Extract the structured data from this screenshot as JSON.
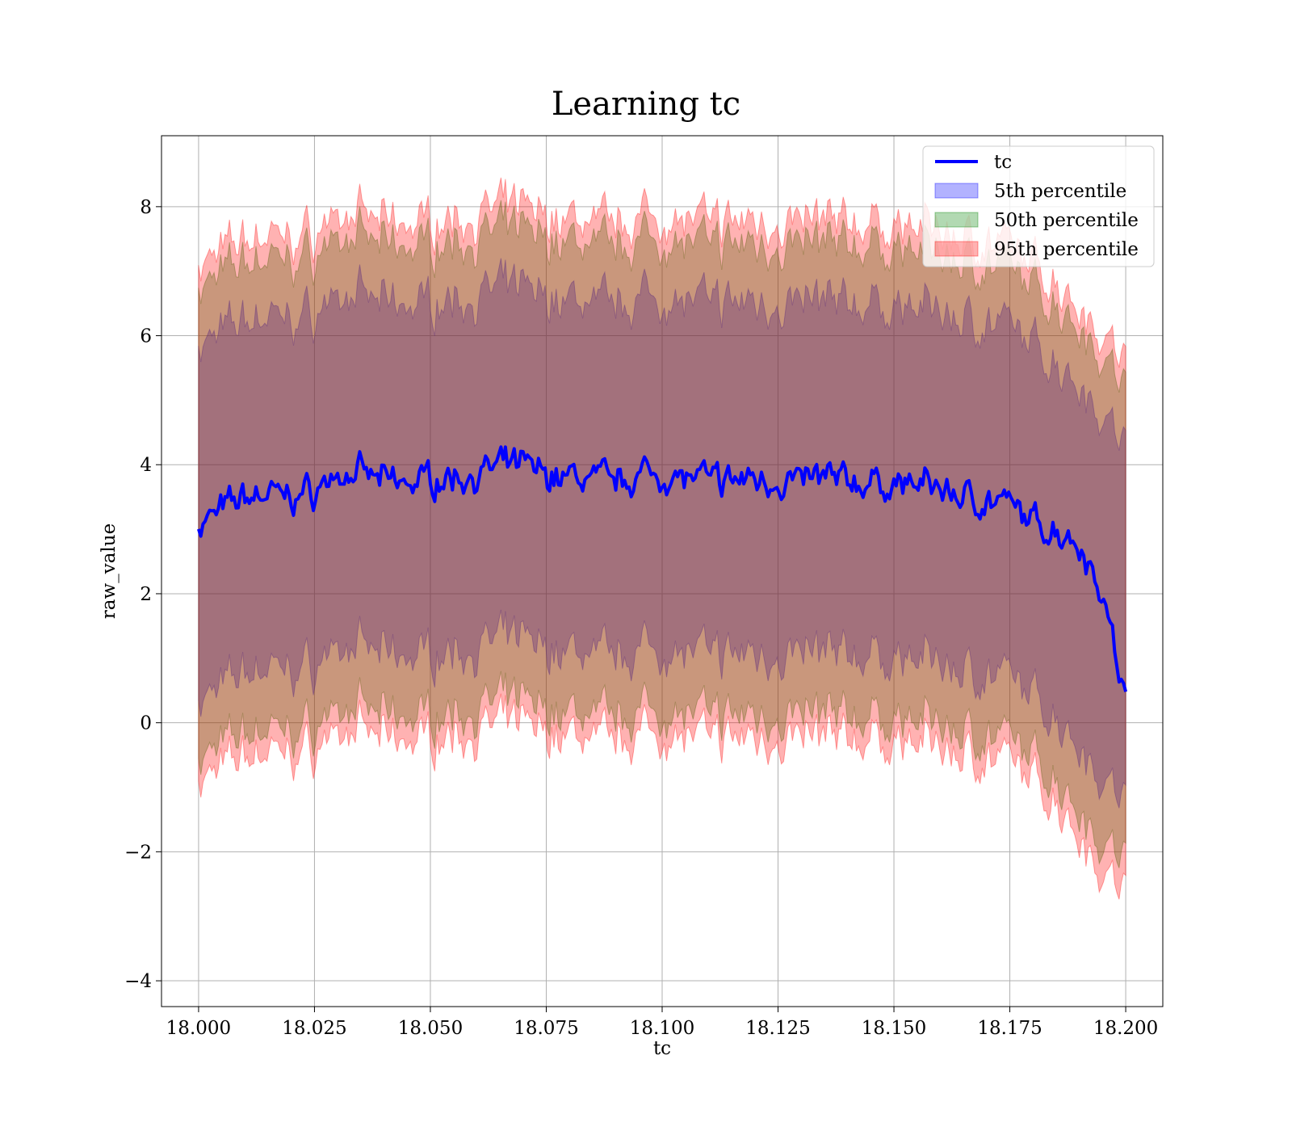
{
  "chart_data": {
    "type": "area",
    "title": "Learning tc",
    "xlabel": "tc",
    "ylabel": "raw_value",
    "xlim": [
      17.992,
      18.208
    ],
    "ylim": [
      -4.4,
      9.1
    ],
    "x_ticks": [
      18.0,
      18.025,
      18.05,
      18.075,
      18.1,
      18.125,
      18.15,
      18.175,
      18.2
    ],
    "x_tick_labels": [
      "18.000",
      "18.025",
      "18.050",
      "18.075",
      "18.100",
      "18.125",
      "18.150",
      "18.175",
      "18.200"
    ],
    "y_ticks": [
      -4,
      -2,
      0,
      2,
      4,
      6,
      8
    ],
    "y_tick_labels": [
      "−4",
      "−2",
      "0",
      "2",
      "4",
      "6",
      "8"
    ],
    "grid": true,
    "legend_position": "top-right",
    "series": [
      {
        "name": "tc",
        "kind": "line",
        "color": "#0000ff",
        "x": [
          18.0,
          18.005,
          18.01,
          18.015,
          18.02,
          18.025,
          18.03,
          18.035,
          18.04,
          18.045,
          18.05,
          18.055,
          18.06,
          18.065,
          18.07,
          18.075,
          18.08,
          18.085,
          18.09,
          18.095,
          18.1,
          18.105,
          18.11,
          18.115,
          18.12,
          18.125,
          18.13,
          18.135,
          18.14,
          18.145,
          18.15,
          18.155,
          18.16,
          18.165,
          18.17,
          18.175,
          18.18,
          18.185,
          18.19,
          18.195,
          18.2
        ],
        "y": [
          3.05,
          3.3,
          3.5,
          3.55,
          3.5,
          3.6,
          3.85,
          3.85,
          3.75,
          3.7,
          3.8,
          3.8,
          3.85,
          3.95,
          4.0,
          3.85,
          3.8,
          3.8,
          3.75,
          3.85,
          3.85,
          3.8,
          3.75,
          3.75,
          3.8,
          3.75,
          3.75,
          3.8,
          3.75,
          3.7,
          3.7,
          3.7,
          3.65,
          3.5,
          3.45,
          3.35,
          3.1,
          3.0,
          2.8,
          2.05,
          0.3
        ]
      },
      {
        "name": "5th percentile",
        "kind": "band",
        "color": "#0000ff",
        "opacity": 0.3,
        "x": [
          18.0,
          18.005,
          18.01,
          18.015,
          18.02,
          18.025,
          18.03,
          18.035,
          18.04,
          18.045,
          18.05,
          18.055,
          18.06,
          18.065,
          18.07,
          18.075,
          18.08,
          18.085,
          18.09,
          18.095,
          18.1,
          18.105,
          18.11,
          18.115,
          18.12,
          18.125,
          18.13,
          18.135,
          18.14,
          18.145,
          18.15,
          18.155,
          18.16,
          18.165,
          18.17,
          18.175,
          18.18,
          18.185,
          18.19,
          18.195,
          18.2
        ],
        "lower": [
          0.3,
          0.55,
          0.8,
          0.85,
          0.8,
          0.9,
          1.15,
          1.15,
          1.05,
          1.0,
          1.1,
          1.1,
          1.15,
          1.25,
          1.3,
          1.15,
          1.1,
          1.1,
          1.05,
          1.15,
          1.15,
          1.1,
          1.05,
          1.05,
          1.1,
          1.05,
          1.05,
          1.1,
          1.05,
          1.0,
          1.0,
          1.0,
          0.95,
          0.8,
          0.75,
          0.65,
          0.4,
          0.1,
          -0.3,
          -0.85,
          -1.2
        ],
        "upper": [
          5.8,
          6.05,
          6.25,
          6.3,
          6.25,
          6.35,
          6.6,
          6.6,
          6.5,
          6.45,
          6.55,
          6.55,
          6.6,
          6.7,
          6.75,
          6.6,
          6.55,
          6.55,
          6.5,
          6.6,
          6.6,
          6.55,
          6.5,
          6.5,
          6.55,
          6.5,
          6.5,
          6.55,
          6.5,
          6.45,
          6.45,
          6.45,
          6.4,
          6.25,
          6.2,
          6.1,
          5.85,
          5.6,
          5.3,
          4.8,
          4.3
        ]
      },
      {
        "name": "50th percentile",
        "kind": "band",
        "color": "#008000",
        "opacity": 0.3,
        "x": [
          18.0,
          18.005,
          18.01,
          18.015,
          18.02,
          18.025,
          18.03,
          18.035,
          18.04,
          18.045,
          18.05,
          18.055,
          18.06,
          18.065,
          18.07,
          18.075,
          18.08,
          18.085,
          18.09,
          18.095,
          18.1,
          18.105,
          18.11,
          18.115,
          18.12,
          18.125,
          18.13,
          18.135,
          18.14,
          18.145,
          18.15,
          18.155,
          18.16,
          18.165,
          18.17,
          18.175,
          18.18,
          18.185,
          18.19,
          18.195,
          18.2
        ],
        "lower": [
          -0.6,
          -0.35,
          -0.15,
          -0.1,
          -0.15,
          -0.05,
          0.2,
          0.2,
          0.1,
          0.05,
          0.15,
          0.15,
          0.2,
          0.3,
          0.35,
          0.2,
          0.15,
          0.15,
          0.1,
          0.2,
          0.2,
          0.15,
          0.1,
          0.1,
          0.15,
          0.1,
          0.1,
          0.15,
          0.1,
          0.05,
          0.05,
          0.05,
          0.0,
          -0.15,
          -0.2,
          -0.3,
          -0.55,
          -0.85,
          -1.3,
          -1.85,
          -2.1
        ],
        "upper": [
          6.7,
          6.95,
          7.15,
          7.2,
          7.15,
          7.25,
          7.5,
          7.5,
          7.4,
          7.35,
          7.45,
          7.45,
          7.5,
          7.6,
          7.65,
          7.5,
          7.45,
          7.45,
          7.4,
          7.5,
          7.5,
          7.45,
          7.4,
          7.4,
          7.45,
          7.4,
          7.4,
          7.45,
          7.4,
          7.35,
          7.35,
          7.35,
          7.3,
          7.15,
          7.1,
          7.0,
          6.75,
          6.5,
          6.2,
          5.7,
          5.2
        ]
      },
      {
        "name": "95th percentile",
        "kind": "band",
        "color": "#ff0000",
        "opacity": 0.3,
        "x": [
          18.0,
          18.005,
          18.01,
          18.015,
          18.02,
          18.025,
          18.03,
          18.035,
          18.04,
          18.045,
          18.05,
          18.055,
          18.06,
          18.065,
          18.07,
          18.075,
          18.08,
          18.085,
          18.09,
          18.095,
          18.1,
          18.105,
          18.11,
          18.115,
          18.12,
          18.125,
          18.13,
          18.135,
          18.14,
          18.145,
          18.15,
          18.155,
          18.16,
          18.165,
          18.17,
          18.175,
          18.18,
          18.185,
          18.19,
          18.195,
          18.2
        ],
        "lower": [
          -0.95,
          -0.7,
          -0.5,
          -0.45,
          -0.5,
          -0.4,
          -0.15,
          -0.15,
          -0.25,
          -0.3,
          -0.2,
          -0.2,
          -0.15,
          -0.05,
          0.0,
          -0.15,
          -0.2,
          -0.2,
          -0.25,
          -0.15,
          -0.15,
          -0.2,
          -0.25,
          -0.25,
          -0.2,
          -0.25,
          -0.25,
          -0.2,
          -0.25,
          -0.3,
          -0.3,
          -0.3,
          -0.35,
          -0.5,
          -0.55,
          -0.65,
          -0.9,
          -1.2,
          -1.7,
          -2.3,
          -2.6
        ],
        "upper": [
          7.05,
          7.3,
          7.5,
          7.55,
          7.5,
          7.6,
          7.85,
          7.85,
          7.75,
          7.7,
          7.8,
          7.8,
          7.85,
          7.95,
          8.0,
          7.85,
          7.8,
          7.8,
          7.75,
          7.85,
          7.85,
          7.8,
          7.75,
          7.75,
          7.8,
          7.75,
          7.75,
          7.8,
          7.75,
          7.7,
          7.7,
          7.7,
          7.65,
          7.5,
          7.45,
          7.35,
          7.1,
          6.85,
          6.5,
          6.05,
          5.6
        ]
      }
    ]
  }
}
